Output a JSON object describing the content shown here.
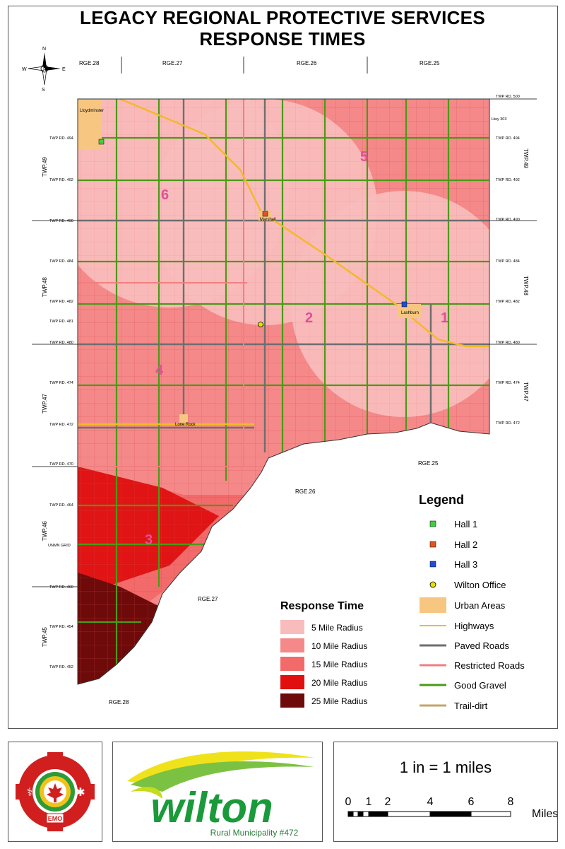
{
  "title": {
    "line1": "LEGACY REGIONAL PROTECTIVE SERVICES",
    "line2": "RESPONSE TIMES"
  },
  "north_arrow": {
    "n": "N",
    "s": "S",
    "e": "E",
    "w": "W"
  },
  "range_labels": {
    "rge28_top": "RGE.28",
    "rge27_top": "RGE.27",
    "rge26_top": "RGE.26",
    "rge25_top": "RGE.25",
    "rge25_mid": "RGE.25",
    "rge26_mid": "RGE.26",
    "rge27_bot": "RGE.27",
    "rge28_bot": "RGE.28"
  },
  "township_labels": {
    "left": [
      "TWP.49",
      "TWP.48",
      "TWP.47",
      "TWP.46",
      "TWP.45"
    ],
    "right": [
      "TWP.49",
      "TWP.48",
      "TWP.47"
    ]
  },
  "road_labels": {
    "left": [
      "TWP RD. 494",
      "TWP RD. 492",
      "TWP RD. 490",
      "TWP RD. 484",
      "TWP RD. 482",
      "TWP RD. 481",
      "TWP RD. 480",
      "TWP RD. 474",
      "TWP RD. 472",
      "TWP RD. 470",
      "TWP RD. 464",
      "UNMN GRID",
      "TWP RD. 460",
      "TWP RD. 454",
      "TWP RD. 452"
    ],
    "right": [
      "TWP RD. 500",
      "Hwy 303",
      "TWP RD. 494",
      "TWP RD. 492",
      "TWP RD. 490",
      "TWP RD. 484",
      "TWP RD. 482",
      "TWP RD. 480",
      "TWP RD. 474",
      "TWP RD. 472"
    ]
  },
  "places": {
    "lloydminster": "Lloydminster",
    "marshall": "Marshall",
    "lashburn": "Lashburn",
    "lone_rock": "Lone Rock"
  },
  "zone_numbers": [
    "1",
    "2",
    "4",
    "5",
    "6",
    "3"
  ],
  "legend": {
    "title": "Legend",
    "items": [
      {
        "label": "Hall 1",
        "symbol": "square",
        "color": "#3fd13f"
      },
      {
        "label": "Hall 2",
        "symbol": "square",
        "color": "#e0561f"
      },
      {
        "label": "Hall 3",
        "symbol": "square",
        "color": "#1f4fd6"
      },
      {
        "label": "Wilton Office",
        "symbol": "target",
        "color": "#e8e000"
      },
      {
        "label": "Urban Areas",
        "symbol": "fill",
        "color": "#f7c680"
      },
      {
        "label": "Highways",
        "symbol": "line",
        "color": "#f2b92a"
      },
      {
        "label": "Paved Roads",
        "symbol": "line",
        "color": "#6e6e6e"
      },
      {
        "label": "Restricted Roads",
        "symbol": "line",
        "color": "#f07f7f"
      },
      {
        "label": "Good Gravel",
        "symbol": "line",
        "color": "#4b9a16"
      },
      {
        "label": "Trail-dirt",
        "symbol": "line",
        "color": "#c4a46b"
      }
    ]
  },
  "response_time": {
    "title": "Response Time",
    "items": [
      {
        "label": "5 Mile Radius",
        "color": "#f9bcbc"
      },
      {
        "label": "10 Mile Radius",
        "color": "#f58989"
      },
      {
        "label": "15 Mile Radius",
        "color": "#f26a6a"
      },
      {
        "label": "20 Mile Radius",
        "color": "#e20f0f"
      },
      {
        "label": "25 Mile Radius",
        "color": "#6e0a0a"
      }
    ]
  },
  "logos": {
    "emo_text": "EMO",
    "wilton_word": "wilton",
    "wilton_sub": "Rural Municipality #472"
  },
  "scale": {
    "text": "1 in = 1 miles",
    "ticks": [
      "0",
      "1",
      "2",
      "4",
      "6",
      "8"
    ],
    "unit": "Miles"
  }
}
